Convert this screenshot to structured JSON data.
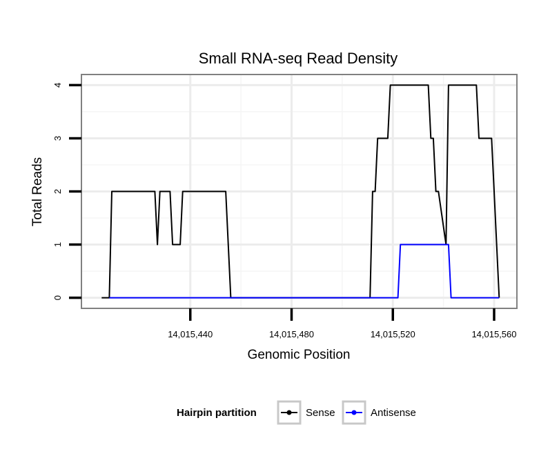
{
  "chart_data": {
    "type": "line",
    "title": "Small RNA-seq Read Density",
    "xlabel": "Genomic Position",
    "ylabel": "Total Reads",
    "xlim": [
      14015397,
      14015569
    ],
    "ylim": [
      -0.2,
      4.2
    ],
    "x_ticks": [
      14015440,
      14015480,
      14015520,
      14015560
    ],
    "x_tick_labels": [
      "14,015,440",
      "14,015,480",
      "14,015,520",
      "14,015,560"
    ],
    "y_ticks": [
      0,
      1,
      2,
      3,
      4
    ],
    "y_tick_labels": [
      "0",
      "1",
      "2",
      "3",
      "4"
    ],
    "grid": true,
    "legend": {
      "title": "Hairpin partition",
      "placement": "bottom",
      "entries": [
        "Sense",
        "Antisense"
      ]
    },
    "series": [
      {
        "name": "Sense",
        "color": "#000000",
        "x": [
          14015405,
          14015408,
          14015409,
          14015426,
          14015427,
          14015428,
          14015432,
          14015433,
          14015436,
          14015437,
          14015454,
          14015456,
          14015511,
          14015512,
          14015513,
          14015514,
          14015518,
          14015519,
          14015534,
          14015535,
          14015536,
          14015537,
          14015538,
          14015541,
          14015542,
          14015553,
          14015554,
          14015559,
          14015560,
          14015562
        ],
        "values": [
          0,
          0,
          2,
          2,
          1,
          2,
          2,
          1,
          1,
          2,
          2,
          0,
          0,
          2,
          2,
          3,
          3,
          4,
          4,
          3,
          3,
          2,
          2,
          1,
          4,
          4,
          3,
          3,
          2,
          0
        ]
      },
      {
        "name": "Antisense",
        "color": "#0000ff",
        "x": [
          14015408,
          14015522,
          14015523,
          14015542,
          14015543,
          14015562
        ],
        "values": [
          0,
          0,
          1,
          1,
          0,
          0
        ]
      }
    ]
  }
}
